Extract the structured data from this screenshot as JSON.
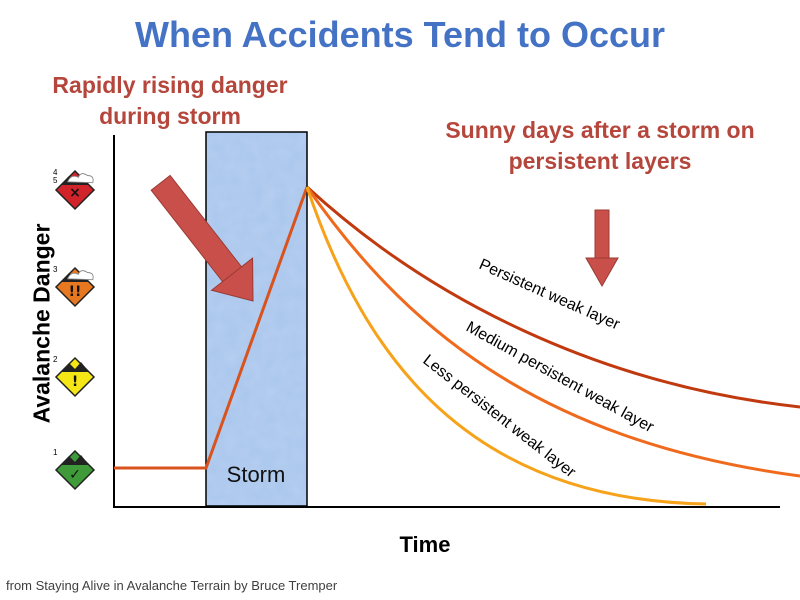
{
  "title": "When Accidents Tend to Occur",
  "annotations": {
    "rising": "Rapidly rising danger during storm",
    "sunny": "Sunny days after a storm on persistent layers"
  },
  "axes": {
    "ylabel": "Avalanche Danger",
    "xlabel": "Time"
  },
  "storm": {
    "label": "Storm",
    "fill": "#a9c6ec"
  },
  "curves": [
    {
      "label": "Persistent weak layer",
      "color": "#c0390f"
    },
    {
      "label": "Medium persistent weak layer",
      "color": "#ef6a1d"
    },
    {
      "label": "Less persistent weak layer",
      "color": "#f6a21a"
    }
  ],
  "danger_levels": [
    {
      "num": "4\n5",
      "symbol": "×",
      "color": "#d0232a"
    },
    {
      "num": "3",
      "symbol": "!!",
      "color": "#e8781f"
    },
    {
      "num": "2",
      "symbol": "!",
      "color": "#f5e616"
    },
    {
      "num": "1",
      "symbol": "✓",
      "color": "#3f9a3a"
    }
  ],
  "arrow_color": "#c9504a",
  "credit": "from Staying Alive in Avalanche Terrain by Bruce Tremper"
}
